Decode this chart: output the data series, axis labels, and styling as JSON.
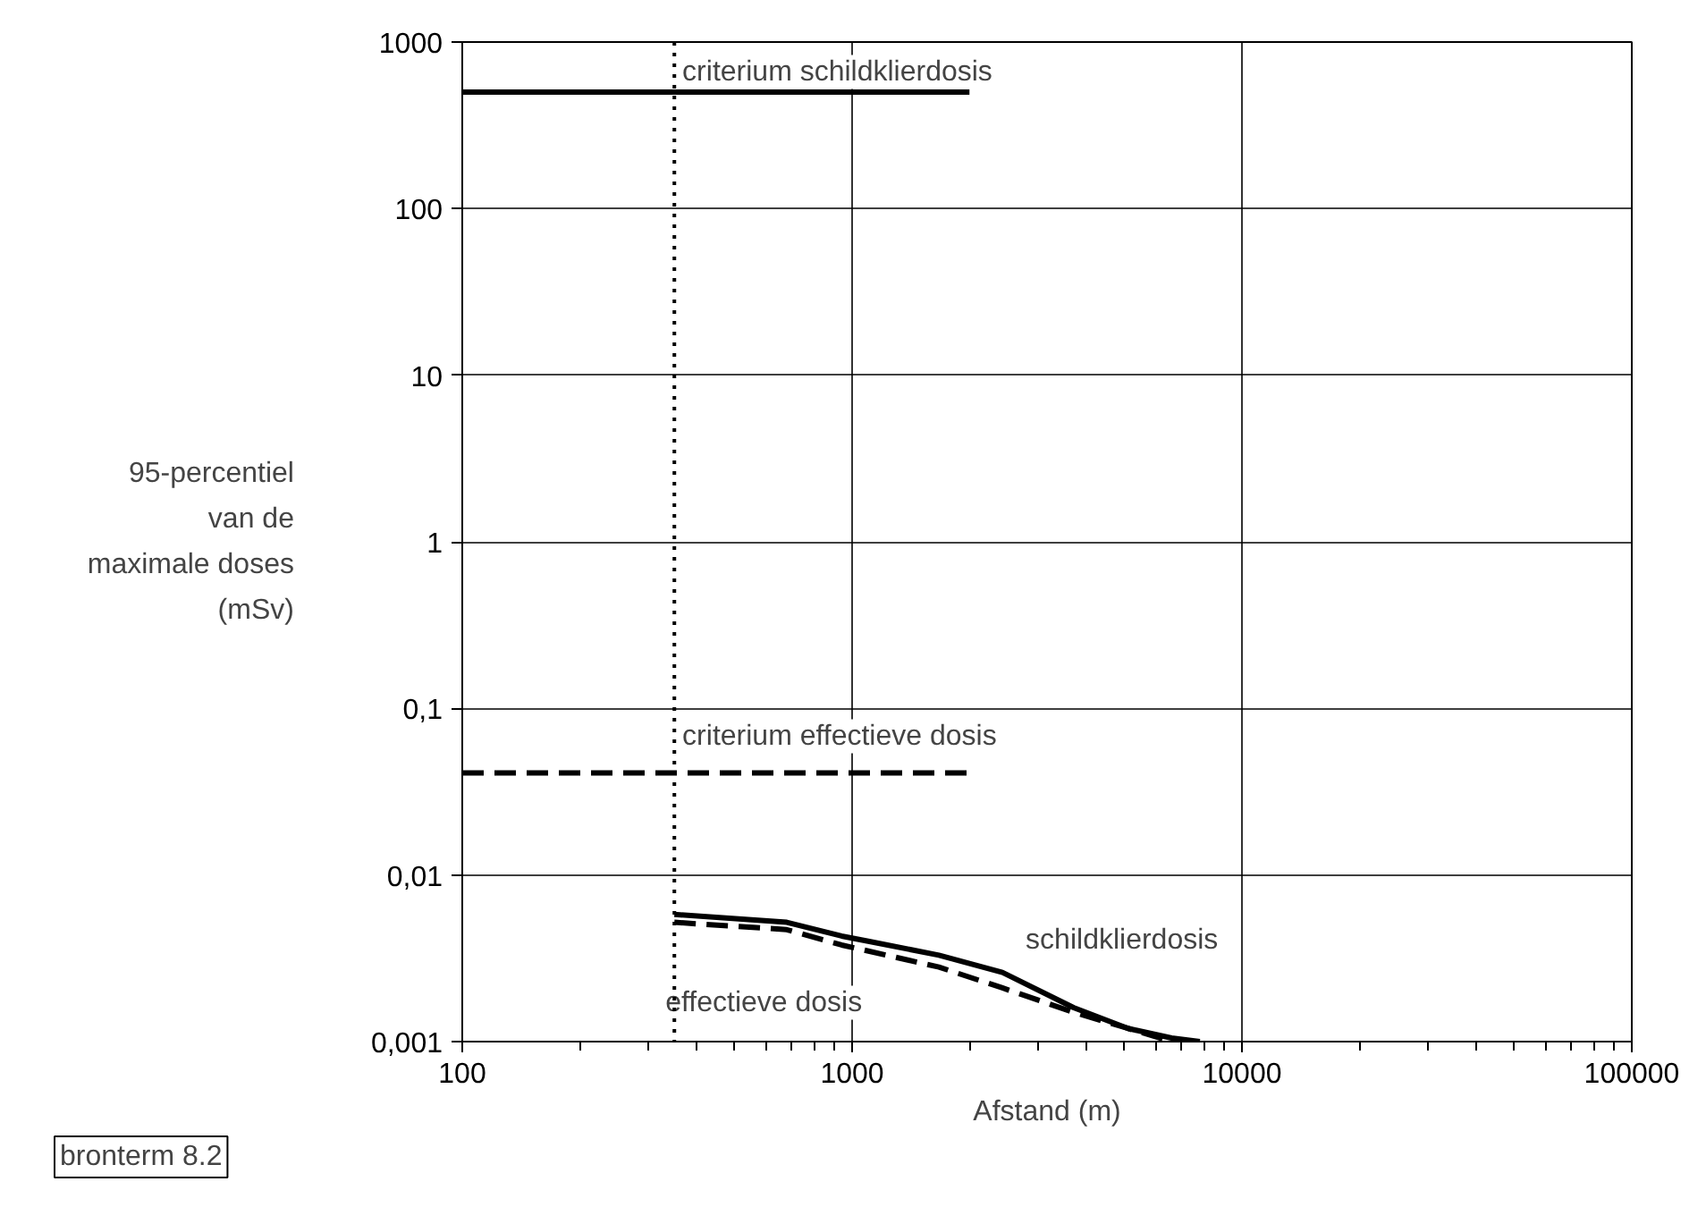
{
  "chart_data": {
    "type": "line",
    "xlabel": "Afstand (m)",
    "ylabel": "95-percentiel van de maximale doses (mSv)",
    "log": "xy",
    "xlim": [
      100,
      100000
    ],
    "xticks": [
      100,
      1000,
      10000,
      100000
    ],
    "ylim": [
      0.001,
      1000
    ],
    "yticks": [
      {
        "value": 0.001,
        "label": "0,001"
      },
      {
        "value": 0.01,
        "label": "0,01"
      },
      {
        "value": 0.1,
        "label": "0,1"
      },
      {
        "value": 1,
        "label": "1"
      },
      {
        "value": 10,
        "label": "10"
      },
      {
        "value": 100,
        "label": "100"
      },
      {
        "value": 1000,
        "label": "1000"
      }
    ],
    "grid": true,
    "series": [
      {
        "color": "#000000",
        "line_style": "solid",
        "x": [
          100,
          2000
        ],
        "values": [
          500,
          500
        ]
      },
      {
        "color": "#000000",
        "line_style": "dashed",
        "x": [
          100,
          2000
        ],
        "values": [
          0.041,
          0.041
        ]
      },
      {
        "name": "schildklierdosis",
        "color": "#000000",
        "line_style": "solid",
        "x": [
          350,
          680,
          940,
          1100,
          1670,
          2430,
          3700,
          5100,
          6600,
          7800
        ],
        "values": [
          0.0058,
          0.0052,
          0.0043,
          0.004,
          0.0033,
          0.0026,
          0.0016,
          0.0012,
          0.00105,
          0.001
        ]
      },
      {
        "name": "effectieve dosis",
        "color": "#000000",
        "line_style": "dashed",
        "x": [
          350,
          680,
          940,
          1670,
          2430,
          3700,
          5100,
          6600
        ],
        "values": [
          0.0052,
          0.0047,
          0.0038,
          0.0028,
          0.0021,
          0.0015,
          0.0012,
          0.001
        ]
      }
    ],
    "ref_lines": [
      {
        "axis": "x",
        "value": 350,
        "label": null,
        "line_style": "dotted",
        "color": "#000000"
      }
    ],
    "annotations": [
      {
        "text": "criterium schildklierdosis",
        "x": 363,
        "y": 660
      },
      {
        "text": "criterium effectieve dosis",
        "x": 363,
        "y": 0.068
      },
      "bronterm 8.2"
    ]
  }
}
